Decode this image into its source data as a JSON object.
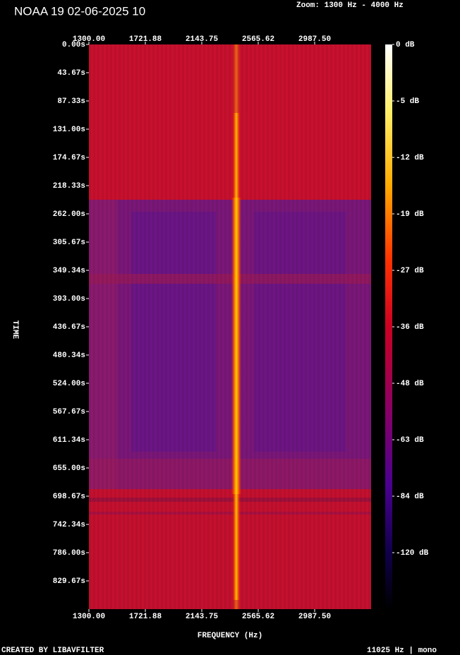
{
  "chart_data": {
    "type": "spectrogram",
    "title": "NOAA 19 02-06-2025 10",
    "subtitle": "Zoom: 1300 Hz - 4000 Hz",
    "xlabel": "FREQUENCY (Hz)",
    "ylabel": "TIME",
    "footer_left": "CREATED BY LIBAVFILTER",
    "footer_right": "11025 Hz | mono",
    "xlim": [
      1300,
      3409.38
    ],
    "xticks": [
      {
        "value": 1300,
        "label": "1300.00"
      },
      {
        "value": 1721.88,
        "label": "1721.88"
      },
      {
        "value": 2143.75,
        "label": "2143.75"
      },
      {
        "value": 2565.62,
        "label": "2565.62"
      },
      {
        "value": 2987.5,
        "label": "2987.50"
      }
    ],
    "ylim": [
      0,
      873.34
    ],
    "yticks": [
      {
        "value": 0,
        "label": "0.00s"
      },
      {
        "value": 43.67,
        "label": "43.67s"
      },
      {
        "value": 87.33,
        "label": "87.33s"
      },
      {
        "value": 131,
        "label": "131.00s"
      },
      {
        "value": 174.67,
        "label": "174.67s"
      },
      {
        "value": 218.33,
        "label": "218.33s"
      },
      {
        "value": 262,
        "label": "262.00s"
      },
      {
        "value": 305.67,
        "label": "305.67s"
      },
      {
        "value": 349.34,
        "label": "349.34s"
      },
      {
        "value": 393,
        "label": "393.00s"
      },
      {
        "value": 436.67,
        "label": "436.67s"
      },
      {
        "value": 480.34,
        "label": "480.34s"
      },
      {
        "value": 524,
        "label": "524.00s"
      },
      {
        "value": 567.67,
        "label": "567.67s"
      },
      {
        "value": 611.34,
        "label": "611.34s"
      },
      {
        "value": 655,
        "label": "655.00s"
      },
      {
        "value": 698.67,
        "label": "698.67s"
      },
      {
        "value": 742.34,
        "label": "742.34s"
      },
      {
        "value": 786,
        "label": "786.00s"
      },
      {
        "value": 829.67,
        "label": "829.67s"
      }
    ],
    "colorbar_ticks": [
      {
        "value": 0,
        "label": "0 dB"
      },
      {
        "value": -5,
        "label": "-5 dB"
      },
      {
        "value": -12,
        "label": "-12 dB"
      },
      {
        "value": -19,
        "label": "-19 dB"
      },
      {
        "value": -27,
        "label": "-27 dB"
      },
      {
        "value": -36,
        "label": "-36 dB"
      },
      {
        "value": -48,
        "label": "-48 dB"
      },
      {
        "value": -63,
        "label": "-63 dB"
      },
      {
        "value": -84,
        "label": "-84 dB"
      },
      {
        "value": -120,
        "label": "-120 dB"
      }
    ]
  }
}
